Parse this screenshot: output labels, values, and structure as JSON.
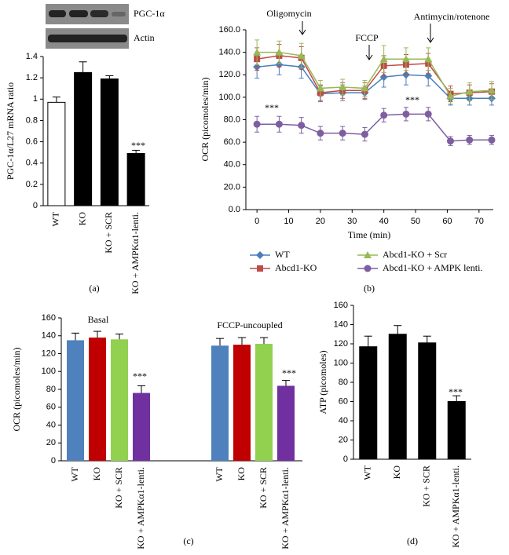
{
  "chart_data": [
    {
      "type": "bar",
      "panel_label": "(a)",
      "blot_labels": [
        "PGC-1α",
        "Actin"
      ],
      "y_label": "PGC-1α/L27 mRNA ratio",
      "categories": [
        "WT",
        "KO",
        "KO + SCR",
        "KO + AMPKα1-lenti."
      ],
      "values": [
        0.97,
        1.25,
        1.19,
        0.49
      ],
      "errors": [
        0.05,
        0.1,
        0.03,
        0.03
      ],
      "colors": [
        "#ffffff",
        "#000000",
        "#000000",
        "#000000"
      ],
      "ylim": [
        0,
        1.4
      ],
      "yticks": [
        0,
        0.2,
        0.4,
        0.6,
        0.8,
        1,
        1.2,
        1.4
      ],
      "annotations": [
        "***"
      ]
    },
    {
      "type": "line",
      "panel_label": "(b)",
      "y_label": "OCR (picomoles/min)",
      "x_label": "Time (min)",
      "x": [
        0,
        7,
        14,
        20,
        27,
        34,
        40,
        47,
        54,
        61,
        67,
        74
      ],
      "series": [
        {
          "name": "WT",
          "color": "#4a7ebb",
          "marker": "diamond",
          "values": [
            127,
            129,
            127,
            103,
            104,
            104,
            118,
            120,
            119,
            99,
            99,
            99
          ],
          "errors": [
            10,
            9,
            10,
            7,
            7,
            6,
            9,
            9,
            9,
            6,
            6,
            6
          ]
        },
        {
          "name": "Abcd1-KO",
          "color": "#be4b48",
          "marker": "square",
          "values": [
            134,
            137,
            135,
            104,
            106,
            106,
            128,
            129,
            130,
            103,
            104,
            105
          ],
          "errors": [
            10,
            10,
            10,
            7,
            7,
            7,
            9,
            9,
            9,
            7,
            7,
            7
          ]
        },
        {
          "name": "Abcd1-KO + Scr",
          "color": "#98b954",
          "marker": "triangle",
          "values": [
            140,
            140,
            137,
            108,
            109,
            108,
            134,
            134,
            134,
            101,
            105,
            106
          ],
          "errors": [
            11,
            10,
            11,
            7,
            7,
            7,
            12,
            10,
            10,
            7,
            8,
            8
          ]
        },
        {
          "name": "Abcd1-KO + AMPK lenti.",
          "color": "#7d5fa0",
          "marker": "circle",
          "values": [
            76,
            76,
            75,
            68,
            68,
            67,
            84,
            85,
            85,
            61,
            62,
            62
          ],
          "errors": [
            7,
            7,
            7,
            6,
            6,
            6,
            6,
            6,
            6,
            4,
            4,
            4
          ]
        }
      ],
      "xlim": [
        -3.5,
        74.5
      ],
      "xticks": [
        0,
        10,
        20,
        30,
        40,
        50,
        60,
        70
      ],
      "ylim": [
        0,
        160
      ],
      "yticks": [
        {
          "value": 0,
          "label": "0.0"
        },
        {
          "value": 20,
          "label": "20.0"
        },
        {
          "value": 40,
          "label": "40.0"
        },
        {
          "value": 60,
          "label": "60.0"
        },
        {
          "value": 80,
          "label": "80.0"
        },
        {
          "value": 100,
          "label": "100.0"
        },
        {
          "value": 120,
          "label": "120.0"
        },
        {
          "value": 140,
          "label": "140.0"
        },
        {
          "value": 160,
          "label": "160.0"
        }
      ],
      "annotations": [
        "Oligomycin",
        "FCCP",
        "Antimycin/rotenone",
        "***",
        "***"
      ]
    },
    {
      "type": "grouped_bar",
      "panel_label": "(c)",
      "y_label": "OCR (picomoles/min)",
      "categories": [
        "WT",
        "KO",
        "KO + SCR",
        "KO + AMPKα1-lenti."
      ],
      "colors": [
        "#4f81bd",
        "#c00000",
        "#92d050",
        "#7030a0"
      ],
      "series": [
        {
          "name": "Basal",
          "values": [
            135,
            138,
            136,
            76
          ],
          "errors": [
            8,
            7,
            6,
            8
          ]
        },
        {
          "name": "FCCP-uncoupled",
          "values": [
            129,
            130,
            131,
            84
          ],
          "errors": [
            8,
            8,
            7,
            6
          ]
        }
      ],
      "ylim": [
        0,
        160
      ],
      "yticks": [
        0,
        20,
        40,
        60,
        80,
        100,
        120,
        140,
        160
      ],
      "annotations": [
        "***",
        "***"
      ]
    },
    {
      "type": "bar",
      "panel_label": "(d)",
      "y_label": "ATP (picomoles)",
      "categories": [
        "WT",
        "KO",
        "KO + SCR",
        "KO + AMPKα1-lenti."
      ],
      "values": [
        117,
        130,
        121,
        60
      ],
      "errors": [
        11,
        9,
        7,
        6
      ],
      "color": "#000000",
      "ylim": [
        0,
        160
      ],
      "yticks": [
        0,
        20,
        40,
        60,
        80,
        100,
        120,
        140,
        160
      ],
      "annotations": [
        "***"
      ]
    }
  ]
}
